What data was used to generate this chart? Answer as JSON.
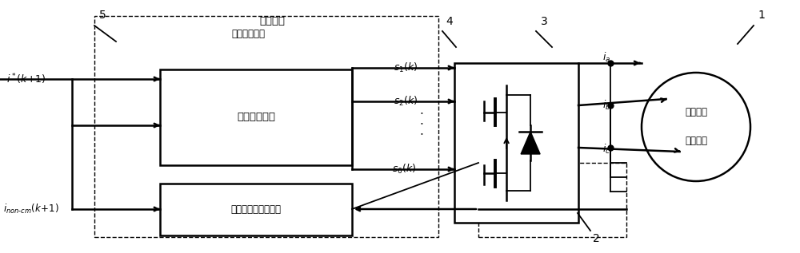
{
  "fig_width": 10.0,
  "fig_height": 3.17,
  "dpi": 100,
  "bg_color": "#ffffff",
  "title_label": "有限状态",
  "mpc_label": "模型预测控制",
  "cost_label": "最小价值函数",
  "predict_label": "非换相电流预测模型",
  "motor_line1": "永磁无刷",
  "motor_line2": "直流电机",
  "label_5": "5",
  "label_4": "4",
  "label_3": "3",
  "label_2": "2",
  "label_1": "1"
}
